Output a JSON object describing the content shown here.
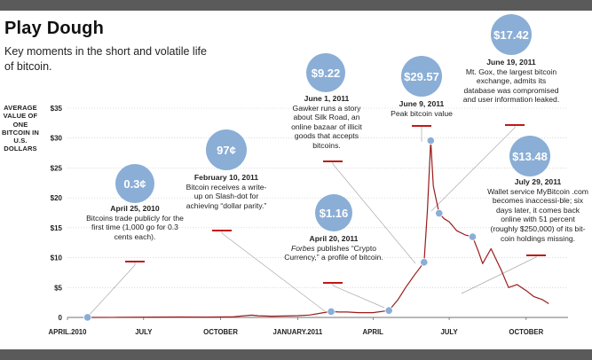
{
  "header": {
    "title": "Play Dough",
    "subtitle": "Key moments in the short and volatile life of bitcoin."
  },
  "chart_data": {
    "type": "line",
    "title": "Play Dough",
    "ylabel": "AVERAGE VALUE OF ONE BITCOIN IN U.S. DOLLARS",
    "ylim": [
      0,
      35
    ],
    "y_ticks": [
      "$35",
      "$30",
      "$25",
      "$20",
      "$15",
      "$10",
      "$5",
      "0"
    ],
    "x_ticks": [
      "APRIL.2010",
      "JULY",
      "OCTOBER",
      "JANUARY.2011",
      "APRIL",
      "JULY",
      "OCTOBER"
    ],
    "x_tick_dates": [
      "2010-04-01",
      "2010-07-01",
      "2010-10-01",
      "2011-01-01",
      "2011-04-01",
      "2011-07-01",
      "2011-10-01"
    ],
    "grid": true,
    "colors": {
      "line": "#9b1b1b",
      "marker": "#8aaed6",
      "bar": "#5a5a5a",
      "dash": "#c01818"
    },
    "series": [
      {
        "x": [
          "2010-04-25",
          "2010-06-01",
          "2010-07-15",
          "2010-08-15",
          "2010-09-15",
          "2010-10-15",
          "2010-11-07",
          "2010-11-15",
          "2010-12-01",
          "2010-12-15",
          "2011-01-01",
          "2011-01-15",
          "2011-02-01",
          "2011-02-09",
          "2011-02-20",
          "2011-03-01",
          "2011-03-15",
          "2011-04-01",
          "2011-04-20",
          "2011-05-01",
          "2011-05-10",
          "2011-05-20",
          "2011-06-01",
          "2011-06-05",
          "2011-06-09",
          "2011-06-12",
          "2011-06-15",
          "2011-06-19",
          "2011-06-25",
          "2011-07-01",
          "2011-07-10",
          "2011-07-20",
          "2011-07-29",
          "2011-08-05",
          "2011-08-10",
          "2011-08-20",
          "2011-09-01",
          "2011-09-10",
          "2011-09-20",
          "2011-10-01",
          "2011-10-10",
          "2011-10-20",
          "2011-10-28"
        ],
        "y": [
          0.003,
          0.01,
          0.06,
          0.07,
          0.06,
          0.1,
          0.39,
          0.28,
          0.21,
          0.24,
          0.3,
          0.4,
          0.8,
          1.0,
          0.9,
          0.9,
          0.8,
          0.8,
          1.16,
          3.0,
          5.0,
          7.0,
          9.22,
          18.0,
          29.57,
          22.0,
          20.0,
          17.42,
          16.5,
          16.0,
          14.5,
          13.8,
          13.48,
          11.0,
          9.0,
          11.5,
          8.0,
          5.0,
          5.5,
          4.5,
          3.5,
          3.0,
          2.3
        ]
      }
    ],
    "events": [
      {
        "date": "2010-04-25",
        "value": 0.003,
        "bubble": "0.3¢",
        "title": "April 25, 2010",
        "text": "Bitcoins trade publicly for the first time (1,000 go for 0.3 cents each)."
      },
      {
        "date": "2011-02-10",
        "value": 0.97,
        "bubble": "97¢",
        "title": "February 10, 2011",
        "text": "Bitcoin receives a write-up on Slash-dot for achieving “dollar parity.”"
      },
      {
        "date": "2011-04-20",
        "value": 1.16,
        "bubble": "$1.16",
        "title": "April 20, 2011",
        "text_italic": "Forbes",
        "text": " publishes “Crypto Currency,” a profile of bitcoin."
      },
      {
        "date": "2011-06-01",
        "value": 9.22,
        "bubble": "$9.22",
        "title": "June 1, 2011",
        "text": "Gawker runs a story about Silk Road, an online bazaar of illicit goods that accepts bitcoins."
      },
      {
        "date": "2011-06-09",
        "value": 29.57,
        "bubble": "$29.57",
        "title": "June 9, 2011",
        "text": "Peak bitcoin value"
      },
      {
        "date": "2011-06-19",
        "value": 17.42,
        "bubble": "$17.42",
        "title": "June 19, 2011",
        "text": "Mt. Gox, the largest bitcoin exchange, admits its database was compromised and user information leaked."
      },
      {
        "date": "2011-07-29",
        "value": 13.48,
        "bubble": "$13.48",
        "title": "July 29, 2011",
        "text": "Wallet service MyBitcoin .com becomes inaccessi-ble; six days later, it comes back online with 51 percent (roughly $250,000) of its bit-coin holdings missing."
      }
    ]
  }
}
